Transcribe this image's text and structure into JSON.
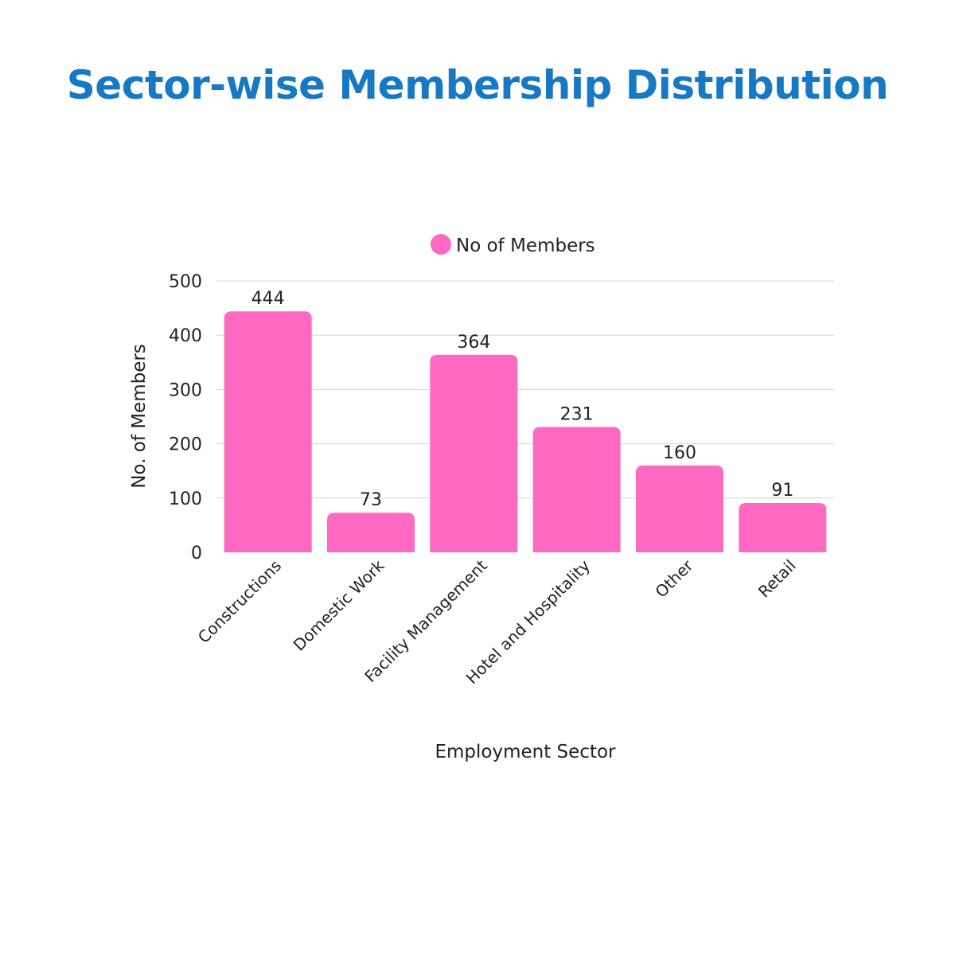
{
  "title": "Sector-wise Membership Distribution",
  "chart_data": {
    "type": "bar",
    "categories": [
      "Constructions",
      "Domestic Work",
      "Facility Management",
      "Hotel and Hospitality",
      "Other",
      "Retail"
    ],
    "series": [
      {
        "name": "No of Members",
        "values": [
          444,
          73,
          364,
          231,
          160,
          91
        ],
        "color": "#ff69c2"
      }
    ],
    "xlabel": "Employment Sector",
    "ylabel": "No. of Members",
    "ylim": [
      0,
      500
    ],
    "yticks": [
      0,
      100,
      200,
      300,
      400,
      500
    ],
    "grid": true,
    "legend_position": "top-center",
    "data_labels": true
  }
}
